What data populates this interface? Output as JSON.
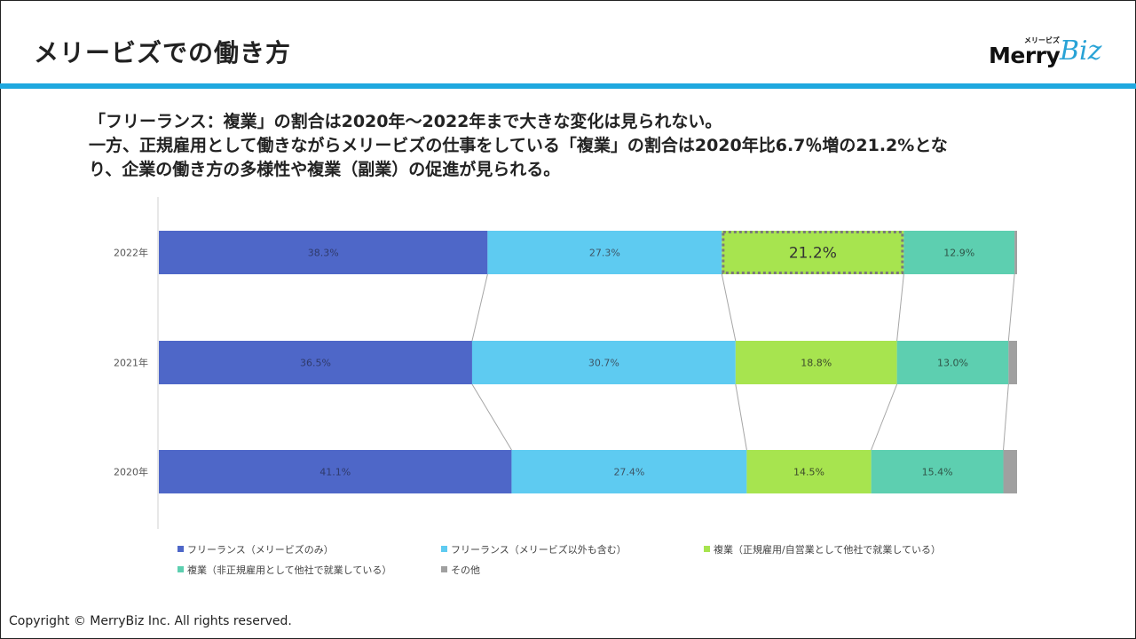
{
  "header": {
    "title": "メリービズでの働き方",
    "logo_text_main": "Merry",
    "logo_text_accent": "Biz",
    "logo_kana": "メリービズ"
  },
  "description": [
    "「フリーランス：複業」の割合は2020年～2022年まで大きな変化は見られない。",
    "一方、正規雇用として働きながらメリービズの仕事をしている「複業」の割合は2020年比6.7％増の21.2%とな",
    "り、企業の働き方の多様性や複業（副業）の促進が見られる。"
  ],
  "footer": {
    "copyright": "Copyright © MerryBiz Inc. All rights reserved."
  },
  "colors": {
    "freelance_only": "#4e67c8",
    "freelance_other": "#5ecbf1",
    "fukugyo_regular": "#a7e44f",
    "fukugyo_nonregular": "#5dcfb0",
    "other": "#a0a0a0",
    "accent_rule": "#1fa8df"
  },
  "chart_data": {
    "type": "bar",
    "orientation": "horizontal",
    "stacked": "100%",
    "categories": [
      "2022年",
      "2021年",
      "2020年"
    ],
    "series": [
      {
        "name": "フリーランス（メリービズのみ）",
        "values": [
          38.3,
          36.5,
          41.1
        ],
        "labels": [
          "38.3%",
          "36.5%",
          "41.1%"
        ]
      },
      {
        "name": "フリーランス（メリービズ以外も含む）",
        "values": [
          27.3,
          30.7,
          27.4
        ],
        "labels": [
          "27.3%",
          "30.7%",
          "27.4%"
        ]
      },
      {
        "name": "複業（正規雇用/自営業として他社で就業している）",
        "values": [
          21.2,
          18.8,
          14.5
        ],
        "labels": [
          "21.2%",
          "18.8%",
          "14.5%"
        ]
      },
      {
        "name": "複業（非正規雇用として他社で就業している）",
        "values": [
          12.9,
          13.0,
          15.4
        ],
        "labels": [
          "12.9%",
          "13.0%",
          "15.4%"
        ]
      },
      {
        "name": "その他",
        "values": [
          0.3,
          1.0,
          1.6
        ],
        "labels": [
          "",
          "",
          ""
        ]
      }
    ],
    "highlight": {
      "category": "2022年",
      "series": "複業（正規雇用/自営業として他社で就業している）"
    },
    "series_lines": true,
    "legend_position": "bottom",
    "grid": false
  }
}
